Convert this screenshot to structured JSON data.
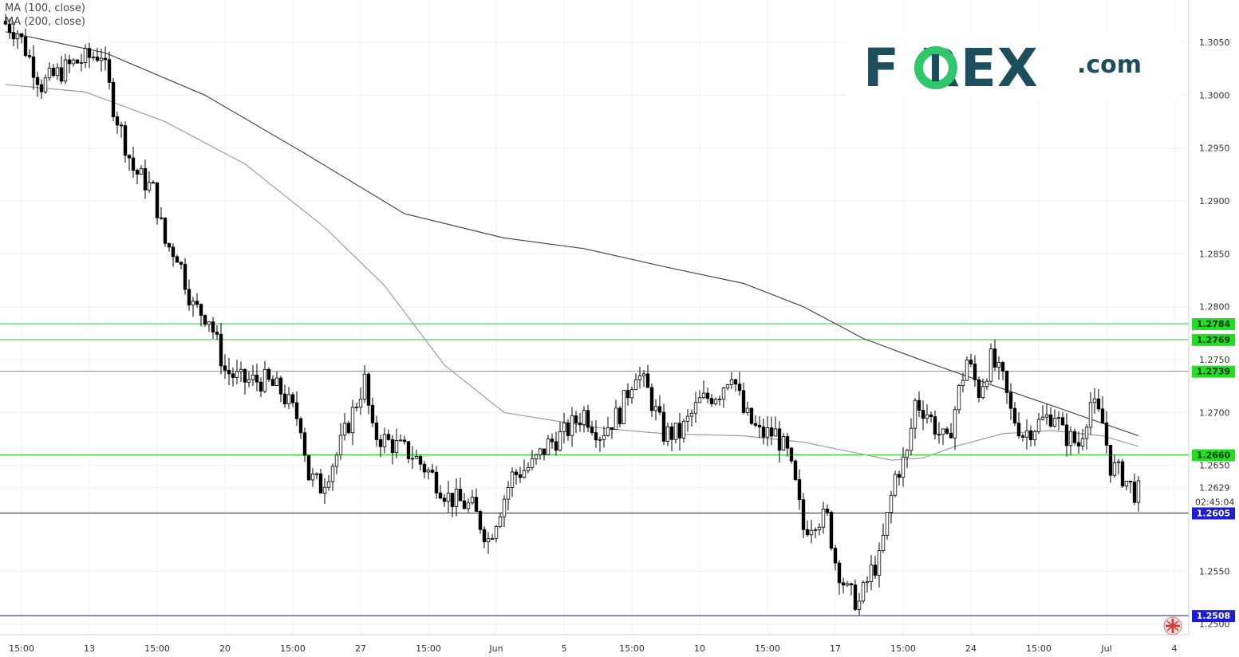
{
  "legend": {
    "ma100": "MA (100, close)",
    "ma200": "MA (200, close)"
  },
  "logo": {
    "brand": "F  REX",
    "suffix": ".com"
  },
  "colors": {
    "up_candle": "#ffffff",
    "down_candle": "#000000",
    "wick": "#000000",
    "ma100": "#9e9e9e",
    "ma200": "#4a4a4a",
    "level_green": "#22dd22",
    "level_dark": "#1a1a66",
    "badge_green": "#22dd22",
    "badge_blue": "#1d1dd8",
    "brand_dark": "#1d4e5c",
    "brand_green": "#2fc66c"
  },
  "chart_data": {
    "type": "candlestick",
    "instrument": "GBP/USD",
    "y_axis": {
      "ticks": [
        "1.3050",
        "1.3000",
        "1.2950",
        "1.2900",
        "1.2850",
        "1.2800",
        "1.2750",
        "1.2700",
        "1.2650",
        "1.2629",
        "1.2550",
        "1.2500"
      ],
      "range": [
        1.249,
        1.309
      ]
    },
    "x_axis": {
      "ticks": [
        "15:00",
        "13",
        "15:00",
        "20",
        "15:00",
        "27",
        "15:00",
        "Jun",
        "5",
        "15:00",
        "10",
        "15:00",
        "17",
        "15:00",
        "24",
        "15:00",
        "Jul",
        "4"
      ],
      "tick_index": [
        4,
        21,
        38,
        55,
        72,
        89,
        106,
        123,
        140,
        157,
        174,
        191,
        208,
        225,
        242,
        259,
        276,
        293
      ]
    },
    "countdown": "02:45:04",
    "price_levels": [
      {
        "label": "1.2784",
        "value": 1.2784,
        "kind": "green"
      },
      {
        "label": "1.2769",
        "value": 1.2769,
        "kind": "green"
      },
      {
        "label": "1.2739",
        "value": 1.2739,
        "kind": "green"
      },
      {
        "label": "1.2660",
        "value": 1.266,
        "kind": "green"
      },
      {
        "label": "1.2605",
        "value": 1.2605,
        "kind": "dark"
      },
      {
        "label": "1.2508",
        "value": 1.2508,
        "kind": "dark"
      }
    ],
    "current_price": {
      "label": "1.2629",
      "value": 1.2629
    },
    "series": [
      {
        "name": "MA (100, close)",
        "values": [
          [
            0,
            1.301
          ],
          [
            20,
            1.3003
          ],
          [
            40,
            1.2975
          ],
          [
            60,
            1.2935
          ],
          [
            80,
            1.2875
          ],
          [
            95,
            1.282
          ],
          [
            110,
            1.2745
          ],
          [
            125,
            1.27
          ],
          [
            138,
            1.2692
          ],
          [
            150,
            1.2685
          ],
          [
            165,
            1.268
          ],
          [
            185,
            1.2678
          ],
          [
            200,
            1.2672
          ],
          [
            213,
            1.2662
          ],
          [
            222,
            1.2655
          ],
          [
            230,
            1.2657
          ],
          [
            238,
            1.2668
          ],
          [
            250,
            1.268
          ],
          [
            262,
            1.2683
          ],
          [
            275,
            1.2678
          ],
          [
            284,
            1.2668
          ]
        ]
      },
      {
        "name": "MA (200, close)",
        "values": [
          [
            0,
            1.306
          ],
          [
            25,
            1.304
          ],
          [
            50,
            1.3
          ],
          [
            75,
            1.2945
          ],
          [
            100,
            1.2888
          ],
          [
            125,
            1.2865
          ],
          [
            145,
            1.2855
          ],
          [
            165,
            1.2838
          ],
          [
            185,
            1.2822
          ],
          [
            200,
            1.28
          ],
          [
            215,
            1.277
          ],
          [
            230,
            1.2749
          ],
          [
            248,
            1.2725
          ],
          [
            265,
            1.2703
          ],
          [
            284,
            1.2678
          ]
        ]
      }
    ]
  }
}
